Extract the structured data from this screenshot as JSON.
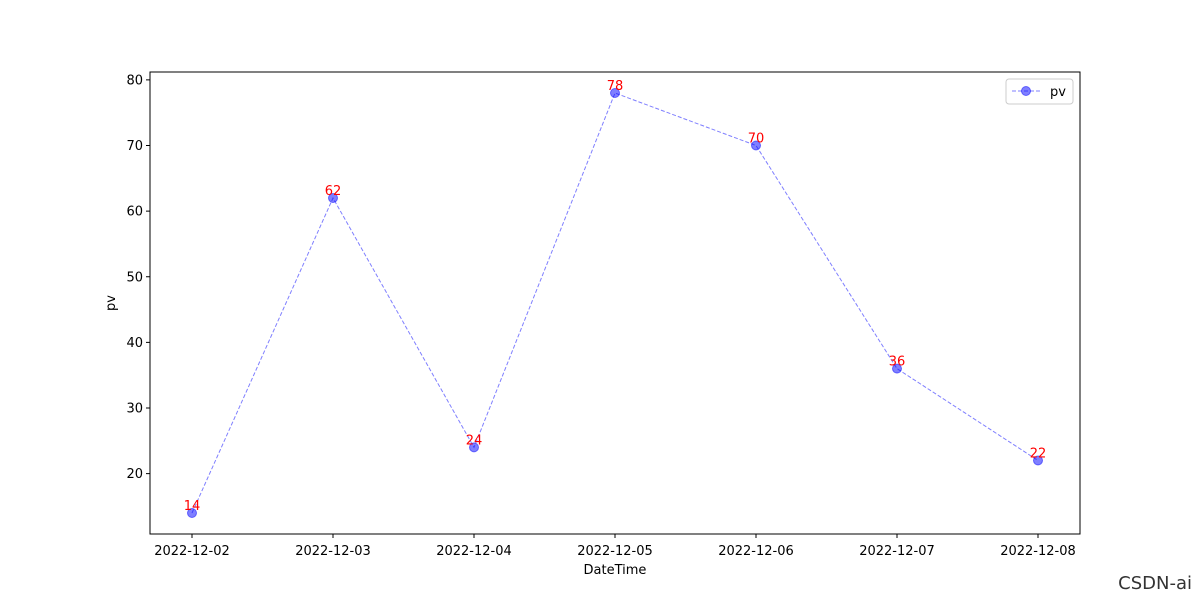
{
  "chart_data": {
    "type": "line",
    "x": [
      "2022-12-02",
      "2022-12-03",
      "2022-12-04",
      "2022-12-05",
      "2022-12-06",
      "2022-12-07",
      "2022-12-08"
    ],
    "series": [
      {
        "name": "pv",
        "values": [
          14,
          62,
          24,
          78,
          70,
          36,
          22
        ],
        "color": "#0000ff",
        "line_style": "dashed",
        "marker": "circle"
      }
    ],
    "data_labels": [
      "14",
      "62",
      "24",
      "78",
      "70",
      "36",
      "22"
    ],
    "data_label_color": "#ff0000",
    "yticks": [
      20,
      30,
      40,
      50,
      60,
      70,
      80
    ],
    "ylim": [
      10.8,
      81.2
    ],
    "xlabel": "DateTime",
    "ylabel": "pv",
    "legend": {
      "placement": "top-right",
      "entries": [
        "pv"
      ]
    },
    "grid": false
  },
  "watermark": "CSDN-ai"
}
